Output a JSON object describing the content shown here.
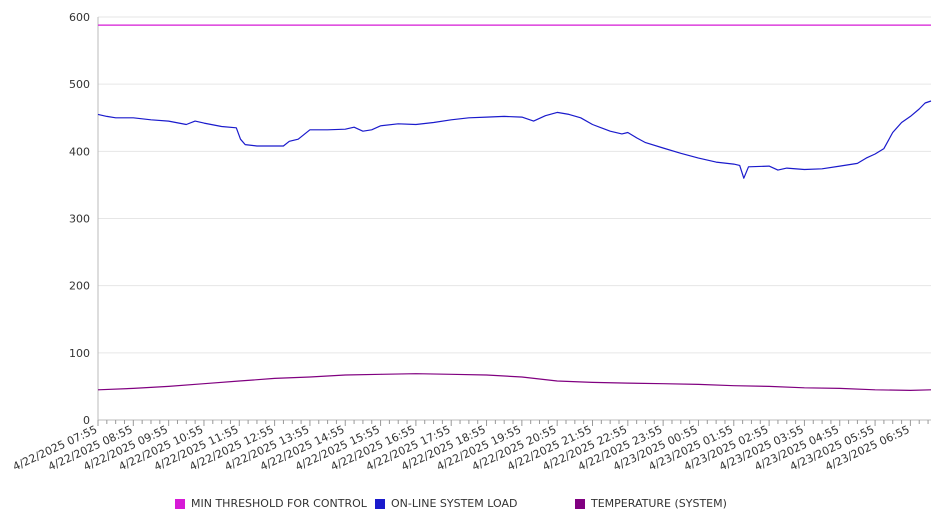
{
  "chart_data": {
    "type": "line",
    "title": "",
    "xlabel": "",
    "ylabel": "",
    "ylim": [
      0,
      600
    ],
    "yticks": [
      0,
      100,
      200,
      300,
      400,
      500,
      600
    ],
    "grid": true,
    "legend_position": "bottom",
    "x_range": [
      "4/22/2025 07:55",
      "4/23/2025 07:30"
    ],
    "x_tick_labels": [
      "4/22/2025 07:55",
      "4/22/2025 08:55",
      "4/22/2025 09:55",
      "4/22/2025 10:55",
      "4/22/2025 11:55",
      "4/22/2025 12:55",
      "4/22/2025 13:55",
      "4/22/2025 14:55",
      "4/22/2025 15:55",
      "4/22/2025 16:55",
      "4/22/2025 17:55",
      "4/22/2025 18:55",
      "4/22/2025 19:55",
      "4/22/2025 20:55",
      "4/22/2025 21:55",
      "4/22/2025 22:55",
      "4/22/2025 23:55",
      "4/23/2025 00:55",
      "4/23/2025 01:55",
      "4/23/2025 02:55",
      "4/23/2025 03:55",
      "4/23/2025 04:55",
      "4/23/2025 05:55",
      "4/23/2025 06:55"
    ],
    "series": [
      {
        "name": "MIN THRESHOLD FOR CONTROL",
        "color": "#d61ad6",
        "points": [
          [
            "4/22/2025 07:55",
            588
          ],
          [
            "4/23/2025 07:30",
            588
          ]
        ]
      },
      {
        "name": "ON-LINE SYSTEM LOAD",
        "color": "#1a1acc",
        "points": [
          [
            "4/22/2025 07:55",
            455
          ],
          [
            "4/22/2025 08:10",
            452
          ],
          [
            "4/22/2025 08:25",
            450
          ],
          [
            "4/22/2025 08:55",
            450
          ],
          [
            "4/22/2025 09:25",
            447
          ],
          [
            "4/22/2025 09:55",
            445
          ],
          [
            "4/22/2025 10:25",
            440
          ],
          [
            "4/22/2025 10:40",
            445
          ],
          [
            "4/22/2025 10:55",
            442
          ],
          [
            "4/22/2025 11:25",
            437
          ],
          [
            "4/22/2025 11:50",
            435
          ],
          [
            "4/22/2025 11:57",
            418
          ],
          [
            "4/22/2025 12:05",
            410
          ],
          [
            "4/22/2025 12:25",
            408
          ],
          [
            "4/22/2025 12:55",
            408
          ],
          [
            "4/22/2025 13:10",
            408
          ],
          [
            "4/22/2025 13:20",
            415
          ],
          [
            "4/22/2025 13:35",
            418
          ],
          [
            "4/22/2025 13:55",
            432
          ],
          [
            "4/22/2025 14:25",
            432
          ],
          [
            "4/22/2025 14:55",
            433
          ],
          [
            "4/22/2025 15:10",
            436
          ],
          [
            "4/22/2025 15:25",
            430
          ],
          [
            "4/22/2025 15:40",
            432
          ],
          [
            "4/22/2025 15:55",
            438
          ],
          [
            "4/22/2025 16:25",
            441
          ],
          [
            "4/22/2025 16:55",
            440
          ],
          [
            "4/22/2025 17:25",
            443
          ],
          [
            "4/22/2025 17:55",
            447
          ],
          [
            "4/22/2025 18:25",
            450
          ],
          [
            "4/22/2025 18:55",
            451
          ],
          [
            "4/22/2025 19:25",
            452
          ],
          [
            "4/22/2025 19:55",
            451
          ],
          [
            "4/22/2025 20:15",
            445
          ],
          [
            "4/22/2025 20:35",
            453
          ],
          [
            "4/22/2025 20:55",
            458
          ],
          [
            "4/22/2025 21:15",
            455
          ],
          [
            "4/22/2025 21:35",
            450
          ],
          [
            "4/22/2025 21:55",
            440
          ],
          [
            "4/22/2025 22:25",
            430
          ],
          [
            "4/22/2025 22:45",
            426
          ],
          [
            "4/22/2025 22:55",
            428
          ],
          [
            "4/22/2025 23:10",
            420
          ],
          [
            "4/22/2025 23:25",
            413
          ],
          [
            "4/22/2025 23:55",
            405
          ],
          [
            "4/23/2025 00:25",
            397
          ],
          [
            "4/23/2025 00:55",
            390
          ],
          [
            "4/23/2025 01:25",
            384
          ],
          [
            "4/23/2025 01:55",
            381
          ],
          [
            "4/23/2025 02:05",
            379
          ],
          [
            "4/23/2025 02:12",
            360
          ],
          [
            "4/23/2025 02:20",
            377
          ],
          [
            "4/23/2025 02:55",
            378
          ],
          [
            "4/23/2025 03:10",
            372
          ],
          [
            "4/23/2025 03:25",
            375
          ],
          [
            "4/23/2025 03:55",
            373
          ],
          [
            "4/23/2025 04:25",
            374
          ],
          [
            "4/23/2025 04:55",
            378
          ],
          [
            "4/23/2025 05:25",
            382
          ],
          [
            "4/23/2025 05:40",
            390
          ],
          [
            "4/23/2025 05:55",
            396
          ],
          [
            "4/23/2025 06:10",
            404
          ],
          [
            "4/23/2025 06:25",
            428
          ],
          [
            "4/23/2025 06:40",
            443
          ],
          [
            "4/23/2025 06:55",
            452
          ],
          [
            "4/23/2025 07:10",
            463
          ],
          [
            "4/23/2025 07:20",
            472
          ],
          [
            "4/23/2025 07:30",
            475
          ]
        ]
      },
      {
        "name": "TEMPERATURE (SYSTEM)",
        "color": "#800080",
        "points": [
          [
            "4/22/2025 07:55",
            45
          ],
          [
            "4/22/2025 08:55",
            47
          ],
          [
            "4/22/2025 09:55",
            50
          ],
          [
            "4/22/2025 10:55",
            54
          ],
          [
            "4/22/2025 11:55",
            58
          ],
          [
            "4/22/2025 12:55",
            62
          ],
          [
            "4/22/2025 13:55",
            64
          ],
          [
            "4/22/2025 14:55",
            67
          ],
          [
            "4/22/2025 15:55",
            68
          ],
          [
            "4/22/2025 16:55",
            69
          ],
          [
            "4/22/2025 17:55",
            68
          ],
          [
            "4/22/2025 18:55",
            67
          ],
          [
            "4/22/2025 19:55",
            64
          ],
          [
            "4/22/2025 20:55",
            58
          ],
          [
            "4/22/2025 21:55",
            56
          ],
          [
            "4/22/2025 22:55",
            55
          ],
          [
            "4/22/2025 23:55",
            54
          ],
          [
            "4/23/2025 00:55",
            53
          ],
          [
            "4/23/2025 01:55",
            51
          ],
          [
            "4/23/2025 02:55",
            50
          ],
          [
            "4/23/2025 03:55",
            48
          ],
          [
            "4/23/2025 04:55",
            47
          ],
          [
            "4/23/2025 05:55",
            45
          ],
          [
            "4/23/2025 06:55",
            44
          ],
          [
            "4/23/2025 07:30",
            45
          ]
        ]
      }
    ]
  },
  "legend": {
    "items": [
      {
        "label": "MIN THRESHOLD FOR CONTROL",
        "color": "#d61ad6"
      },
      {
        "label": "ON-LINE SYSTEM LOAD",
        "color": "#1a1acc"
      },
      {
        "label": "TEMPERATURE (SYSTEM)",
        "color": "#800080"
      }
    ]
  }
}
